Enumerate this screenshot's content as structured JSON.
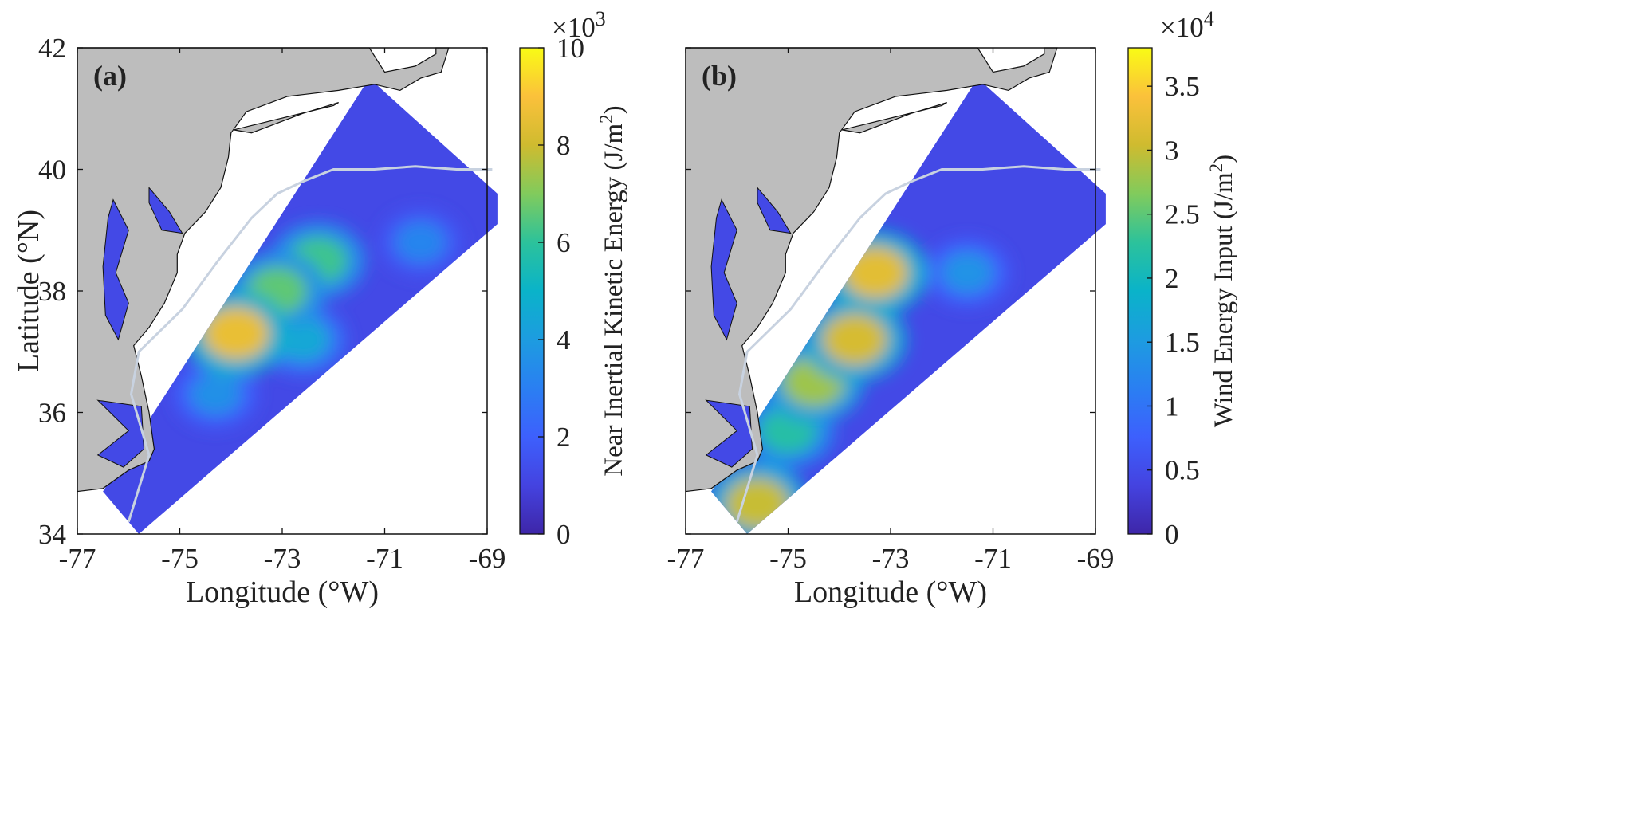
{
  "chart_data": [
    {
      "type": "heatmap",
      "panel_label": "(a)",
      "xlabel": "Longitude (°W)",
      "ylabel": "Latitude (°N)",
      "xlim": [
        -77,
        -69
      ],
      "ylim": [
        34,
        42
      ],
      "xticks": [
        -77,
        -75,
        -73,
        -71,
        -69
      ],
      "yticks": [
        34,
        36,
        38,
        40,
        42
      ],
      "colorbar": {
        "label": "Near Inertial Kinetic Energy (J/m²)",
        "label_text": "Near Inertial Kinetic Energy (J/m",
        "label_sup": "2",
        "label_tail": ")",
        "multiplier_base": "×10",
        "multiplier_exp": "3",
        "range": [
          0,
          10
        ],
        "ticks": [
          0,
          2,
          4,
          6,
          8,
          10
        ],
        "colormap": "parula"
      },
      "hotspots": [
        {
          "lon": -73.9,
          "lat": 37.3,
          "value": 8.6
        },
        {
          "lon": -73.1,
          "lat": 38.0,
          "value": 6.6
        },
        {
          "lon": -72.3,
          "lat": 38.5,
          "value": 6.2
        },
        {
          "lon": -72.6,
          "lat": 37.2,
          "value": 4.5
        },
        {
          "lon": -74.3,
          "lat": 36.3,
          "value": 3.6
        },
        {
          "lon": -70.3,
          "lat": 38.8,
          "value": 3.2
        }
      ],
      "shelf_break_contour": true
    },
    {
      "type": "heatmap",
      "panel_label": "(b)",
      "xlabel": "Longitude (°W)",
      "ylabel": "",
      "xlim": [
        -77,
        -69
      ],
      "ylim": [
        34,
        42
      ],
      "xticks": [
        -77,
        -75,
        -73,
        -71,
        -69
      ],
      "yticks": [
        34,
        36,
        38,
        40,
        42
      ],
      "colorbar": {
        "label": "Wind Energy Input (J/m²)",
        "label_text": "Wind Energy Input (J/m",
        "label_sup": "2",
        "label_tail": ")",
        "multiplier_base": "×10",
        "multiplier_exp": "4",
        "range": [
          0,
          3.8
        ],
        "ticks": [
          0,
          0.5,
          1,
          1.5,
          2,
          2.5,
          3,
          3.5
        ],
        "colormap": "parula"
      },
      "hotspots": [
        {
          "lon": -73.3,
          "lat": 38.3,
          "value": 3.2
        },
        {
          "lon": -73.7,
          "lat": 37.2,
          "value": 3.1
        },
        {
          "lon": -74.5,
          "lat": 36.5,
          "value": 2.8
        },
        {
          "lon": -75.6,
          "lat": 34.5,
          "value": 3.0
        },
        {
          "lon": -75.0,
          "lat": 35.7,
          "value": 2.2
        },
        {
          "lon": -71.5,
          "lat": 38.3,
          "value": 1.4
        }
      ],
      "shelf_break_contour": true
    }
  ]
}
